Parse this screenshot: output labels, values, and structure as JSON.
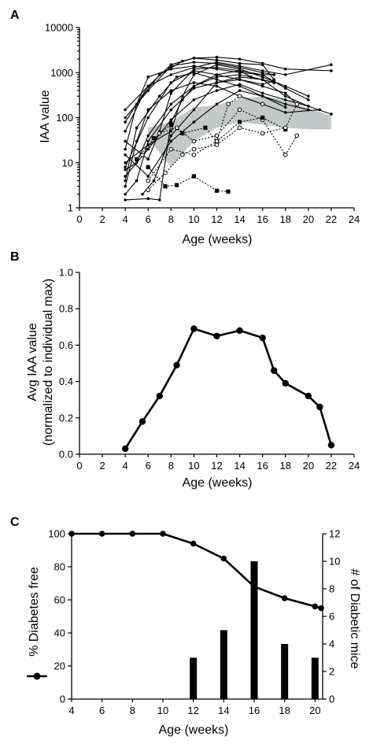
{
  "chart_data": [
    {
      "panel": "A",
      "type": "line",
      "xlabel": "Age (weeks)",
      "ylabel": "IAA value",
      "xlim": [
        0,
        24
      ],
      "ylim": [
        1,
        10000
      ],
      "yscale": "log",
      "x_ticks": [
        "0",
        "2",
        "4",
        "6",
        "8",
        "10",
        "12",
        "14",
        "16",
        "18",
        "20",
        "22",
        "24"
      ],
      "y_ticks": [
        "1",
        "10",
        "100",
        "1000",
        "10000"
      ],
      "band": {
        "color": "#c4c8c8",
        "upper": [
          [
            6,
            60
          ],
          [
            8,
            80
          ],
          [
            10,
            170
          ],
          [
            12,
            190
          ],
          [
            14,
            260
          ],
          [
            16,
            300
          ],
          [
            18,
            250
          ],
          [
            20,
            160
          ],
          [
            22,
            110
          ]
        ],
        "lower": [
          [
            6,
            35
          ],
          [
            8,
            8
          ],
          [
            10,
            30
          ],
          [
            12,
            60
          ],
          [
            14,
            80
          ],
          [
            16,
            70
          ],
          [
            18,
            60
          ],
          [
            20,
            55
          ],
          [
            22,
            55
          ]
        ]
      },
      "series": [
        {
          "values": [
            [
              4,
              150
            ],
            [
              6,
              500
            ],
            [
              8,
              1500
            ],
            [
              10,
              2100
            ],
            [
              12,
              2200
            ],
            [
              14,
              2000
            ],
            [
              16,
              1600
            ],
            [
              18,
              1200
            ],
            [
              22,
              1100
            ]
          ]
        },
        {
          "values": [
            [
              4,
              50
            ],
            [
              5.5,
              300
            ],
            [
              7,
              900
            ],
            [
              9,
              1800
            ],
            [
              10,
              2100
            ],
            [
              12,
              1900
            ],
            [
              14,
              1600
            ],
            [
              16,
              1500
            ],
            [
              17,
              700
            ]
          ]
        },
        {
          "values": [
            [
              4,
              20
            ],
            [
              5,
              200
            ],
            [
              6,
              800
            ],
            [
              8,
              1200
            ],
            [
              10,
              1400
            ],
            [
              12,
              1200
            ],
            [
              14,
              1000
            ],
            [
              16,
              900
            ],
            [
              17,
              900
            ]
          ]
        },
        {
          "values": [
            [
              4,
              8
            ],
            [
              6,
              100
            ],
            [
              8,
              600
            ],
            [
              10,
              1100
            ],
            [
              12,
              900
            ],
            [
              14,
              700
            ],
            [
              16,
              500
            ],
            [
              18,
              350
            ],
            [
              19,
              200
            ]
          ]
        },
        {
          "values": [
            [
              4,
              4
            ],
            [
              5,
              60
            ],
            [
              7,
              300
            ],
            [
              8.5,
              800
            ],
            [
              10,
              1000
            ],
            [
              12,
              700
            ],
            [
              14,
              500
            ],
            [
              16,
              300
            ],
            [
              18,
              200
            ],
            [
              20,
              150
            ]
          ]
        },
        {
          "values": [
            [
              4,
              3
            ],
            [
              5,
              30
            ],
            [
              6,
              150
            ],
            [
              8,
              400
            ],
            [
              10,
              600
            ],
            [
              12,
              500
            ],
            [
              14,
              300
            ],
            [
              16,
              200
            ],
            [
              18,
              130
            ],
            [
              21,
              150
            ]
          ]
        },
        {
          "values": [
            [
              4,
              5
            ],
            [
              6,
              20
            ],
            [
              8,
              90
            ],
            [
              10,
              250
            ],
            [
              12,
              400
            ],
            [
              14,
              550
            ],
            [
              16,
              350
            ],
            [
              18,
              250
            ],
            [
              20,
              180
            ],
            [
              22,
              120
            ]
          ]
        },
        {
          "values": [
            [
              4,
              7
            ],
            [
              5,
              10
            ],
            [
              6,
              40
            ],
            [
              8,
              200
            ],
            [
              10,
              500
            ],
            [
              12,
              900
            ],
            [
              14,
              1100
            ],
            [
              15,
              800
            ],
            [
              17,
              600
            ]
          ]
        },
        {
          "values": [
            [
              4,
              10
            ],
            [
              6,
              25
            ],
            [
              8,
              50
            ],
            [
              9,
              300
            ],
            [
              10,
              900
            ],
            [
              12,
              1500
            ],
            [
              14,
              1200
            ],
            [
              16,
              800
            ],
            [
              18,
              500
            ],
            [
              20,
              300
            ]
          ]
        },
        {
          "values": [
            [
              4,
              30
            ],
            [
              6,
              12
            ],
            [
              7,
              50
            ],
            [
              8,
              350
            ],
            [
              10,
              1200
            ],
            [
              12,
              1300
            ],
            [
              14,
              1100
            ],
            [
              16,
              900
            ],
            [
              18,
              450
            ],
            [
              20,
              250
            ]
          ]
        },
        {
          "values": [
            [
              4,
              80
            ],
            [
              5,
              200
            ],
            [
              6,
              500
            ],
            [
              8,
              900
            ],
            [
              10,
              1300
            ],
            [
              12,
              1700
            ],
            [
              14,
              1400
            ],
            [
              16,
              1100
            ],
            [
              18,
              900
            ],
            [
              22,
              1500
            ]
          ]
        },
        {
          "values": [
            [
              4,
              100
            ],
            [
              6,
              400
            ],
            [
              8,
              1400
            ],
            [
              10,
              1700
            ],
            [
              12,
              1600
            ],
            [
              14,
              1300
            ],
            [
              16,
              1000
            ],
            [
              17,
              900
            ]
          ]
        },
        {
          "values": [
            [
              4,
              2
            ],
            [
              5,
              4
            ],
            [
              6,
              30
            ],
            [
              8,
              150
            ],
            [
              10,
              450
            ],
            [
              12,
              600
            ],
            [
              14,
              700
            ],
            [
              16,
              550
            ],
            [
              17,
              650
            ]
          ]
        },
        {
          "values": [
            [
              4,
              1.5
            ],
            [
              6,
              1.6
            ],
            [
              7,
              1.5
            ],
            [
              8,
              80
            ],
            [
              9,
              250
            ],
            [
              10,
              500
            ],
            [
              12,
              800
            ],
            [
              14,
              900
            ],
            [
              16,
              700
            ],
            [
              18,
              300
            ],
            [
              20,
              180
            ]
          ]
        },
        {
          "values": [
            [
              4,
              15
            ],
            [
              6,
              5
            ],
            [
              8,
              30
            ],
            [
              10,
              80
            ],
            [
              12,
              200
            ],
            [
              14,
              400
            ],
            [
              16,
              300
            ],
            [
              18,
              170
            ]
          ]
        },
        {
          "values": [
            [
              5.5,
              2
            ],
            [
              6.5,
              4
            ],
            [
              8,
              40
            ],
            [
              10,
              150
            ],
            [
              12,
              600
            ],
            [
              14,
              800
            ],
            [
              16,
              700
            ],
            [
              17,
              600
            ]
          ]
        },
        {
          "dotted": true,
          "values": [
            [
              5.5,
              15
            ],
            [
              7,
              45
            ],
            [
              8.5,
              60
            ],
            [
              10,
              30
            ],
            [
              12,
              40
            ],
            [
              14,
              150
            ],
            [
              16,
              90
            ],
            [
              18,
              15
            ],
            [
              19,
              40
            ]
          ]
        },
        {
          "dotted": true,
          "values": [
            [
              5,
              12
            ],
            [
              6.5,
              35
            ],
            [
              8,
              70
            ],
            [
              9,
              45
            ],
            [
              11,
              60
            ],
            [
              12,
              30
            ],
            [
              14,
              80
            ],
            [
              16,
              100
            ],
            [
              18,
              55
            ]
          ]
        },
        {
          "dotted": true,
          "values": [
            [
              6,
              2.5
            ],
            [
              7.5,
              6
            ],
            [
              9,
              15
            ],
            [
              10,
              20
            ],
            [
              12,
              25
            ],
            [
              14,
              60
            ],
            [
              16,
              45
            ],
            [
              18,
              60
            ],
            [
              19,
              200
            ]
          ]
        },
        {
          "dotted": true,
          "values": [
            [
              6,
              8
            ],
            [
              7.5,
              3
            ],
            [
              8.5,
              3.2
            ],
            [
              10,
              5
            ],
            [
              12,
              2.4
            ],
            [
              13,
              2.3
            ]
          ]
        },
        {
          "dotted": true,
          "values": [
            [
              6,
              4
            ],
            [
              8,
              20
            ],
            [
              10,
              15
            ],
            [
              12,
              30
            ],
            [
              13,
              200
            ],
            [
              14,
              300
            ],
            [
              16,
              200
            ]
          ]
        }
      ]
    },
    {
      "panel": "B",
      "type": "line",
      "xlabel": "Age (weeks)",
      "ylabel": "Avg IAA value",
      "ylabel2": "(normalized to individual max)",
      "xlim": [
        0,
        24
      ],
      "ylim": [
        0,
        1.0
      ],
      "x_ticks": [
        "0",
        "2",
        "4",
        "6",
        "8",
        "10",
        "12",
        "14",
        "16",
        "18",
        "20",
        "22",
        "24"
      ],
      "y_ticks": [
        "0.0",
        "0.2",
        "0.4",
        "0.6",
        "0.8",
        "1.0"
      ],
      "x": [
        4,
        5.5,
        7,
        8.5,
        10,
        12,
        14,
        16,
        17,
        18,
        20,
        21,
        22
      ],
      "values": [
        0.03,
        0.18,
        0.32,
        0.49,
        0.69,
        0.65,
        0.68,
        0.64,
        0.46,
        0.39,
        0.32,
        0.26,
        0.05
      ]
    },
    {
      "panel": "C",
      "type": "line+bar",
      "xlabel": "Age (weeks)",
      "ylabel": "% Diabetes free",
      "ylabel_right": "# of Diabetic mice",
      "xlim": [
        4,
        20.5
      ],
      "ylim": [
        0,
        100
      ],
      "ylim_right": [
        0,
        12
      ],
      "x_ticks": [
        "4",
        "6",
        "8",
        "10",
        "12",
        "14",
        "16",
        "18",
        "20"
      ],
      "y_ticks": [
        "0",
        "20",
        "40",
        "60",
        "80",
        "100"
      ],
      "y_ticks_right": [
        "0",
        "2",
        "4",
        "6",
        "8",
        "10",
        "12"
      ],
      "line_x": [
        4,
        6,
        8,
        10,
        12,
        14,
        16,
        18,
        20,
        20.4
      ],
      "line_values": [
        100,
        100,
        100,
        100,
        94,
        85,
        68,
        61,
        56,
        55
      ],
      "bar_x": [
        12,
        14,
        16,
        18,
        20
      ],
      "bar_values": [
        3,
        5,
        10,
        4,
        3
      ]
    }
  ]
}
